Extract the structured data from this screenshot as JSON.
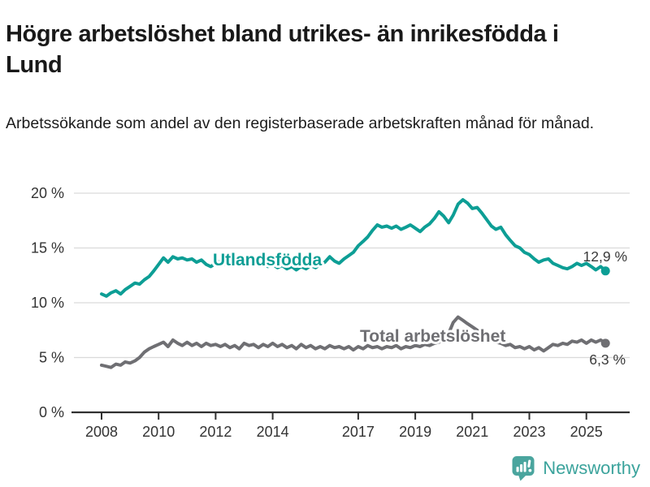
{
  "header": {
    "title": "Högre arbetslöshet bland utrikes- än inrikesfödda i Lund",
    "subtitle": "Arbetssökande som andel av den registerbaserade arbetskraften månad för månad."
  },
  "colors": {
    "foreign_born_line": "#0d9e95",
    "total_line": "#6f6f73",
    "grid": "#dadada",
    "axis": "#303030",
    "axis_text": "#333333",
    "title_text": "#191919",
    "brand_teal": "#4aa59e"
  },
  "footer": {
    "brand": "Newsworthy",
    "brand_icon": "speech-bubble-bar-chart-icon"
  },
  "chart_data": {
    "type": "line",
    "title": "Högre arbetslöshet bland utrikes- än inrikesfödda i Lund",
    "subtitle": "Arbetssökande som andel av den registerbaserade arbetskraften månad för månad.",
    "xlabel": "",
    "ylabel": "",
    "unit": "%",
    "ylim": [
      0,
      20
    ],
    "x_range": [
      2008,
      2025.67
    ],
    "grid": true,
    "legend_position": "inline-labels",
    "yticks": [
      {
        "value": 0,
        "label": "0 %"
      },
      {
        "value": 5,
        "label": "5 %"
      },
      {
        "value": 10,
        "label": "10 %"
      },
      {
        "value": 15,
        "label": "15 %"
      },
      {
        "value": 20,
        "label": "20 %"
      }
    ],
    "xticks": [
      {
        "value": 2008,
        "label": "2008"
      },
      {
        "value": 2010,
        "label": "2010"
      },
      {
        "value": 2012,
        "label": "2012"
      },
      {
        "value": 2014,
        "label": "2014"
      },
      {
        "value": 2017,
        "label": "2017"
      },
      {
        "value": 2019,
        "label": "2019"
      },
      {
        "value": 2021,
        "label": "2021"
      },
      {
        "value": 2023,
        "label": "2023"
      },
      {
        "value": 2025,
        "label": "2025"
      }
    ],
    "series": [
      {
        "name": "Utlandsfödda",
        "color": "#0d9e95",
        "end_label": "12,9 %",
        "end_value": 12.9,
        "points": [
          [
            2008.0,
            10.8
          ],
          [
            2008.17,
            10.6
          ],
          [
            2008.33,
            10.9
          ],
          [
            2008.5,
            11.1
          ],
          [
            2008.67,
            10.8
          ],
          [
            2008.83,
            11.2
          ],
          [
            2009.0,
            11.5
          ],
          [
            2009.17,
            11.8
          ],
          [
            2009.33,
            11.7
          ],
          [
            2009.5,
            12.1
          ],
          [
            2009.67,
            12.4
          ],
          [
            2009.83,
            12.9
          ],
          [
            2010.0,
            13.5
          ],
          [
            2010.17,
            14.1
          ],
          [
            2010.33,
            13.7
          ],
          [
            2010.5,
            14.2
          ],
          [
            2010.67,
            14.0
          ],
          [
            2010.83,
            14.1
          ],
          [
            2011.0,
            13.9
          ],
          [
            2011.17,
            14.0
          ],
          [
            2011.33,
            13.7
          ],
          [
            2011.5,
            13.9
          ],
          [
            2011.67,
            13.5
          ],
          [
            2011.83,
            13.3
          ],
          [
            2012.0,
            13.6
          ],
          [
            2012.17,
            13.8
          ],
          [
            2012.33,
            13.5
          ],
          [
            2012.5,
            13.7
          ],
          [
            2012.67,
            13.4
          ],
          [
            2012.83,
            13.7
          ],
          [
            2013.0,
            13.8
          ],
          [
            2013.17,
            13.5
          ],
          [
            2013.33,
            13.7
          ],
          [
            2013.5,
            13.4
          ],
          [
            2013.67,
            13.6
          ],
          [
            2013.83,
            13.3
          ],
          [
            2014.0,
            13.5
          ],
          [
            2014.17,
            13.2
          ],
          [
            2014.33,
            13.4
          ],
          [
            2014.5,
            13.1
          ],
          [
            2014.67,
            13.3
          ],
          [
            2014.83,
            13.0
          ],
          [
            2015.0,
            13.3
          ],
          [
            2015.17,
            13.1
          ],
          [
            2015.33,
            13.4
          ],
          [
            2015.5,
            13.2
          ],
          [
            2015.67,
            13.5
          ],
          [
            2015.83,
            13.7
          ],
          [
            2016.0,
            14.2
          ],
          [
            2016.17,
            13.8
          ],
          [
            2016.33,
            13.6
          ],
          [
            2016.5,
            14.0
          ],
          [
            2016.67,
            14.3
          ],
          [
            2016.83,
            14.6
          ],
          [
            2017.0,
            15.2
          ],
          [
            2017.17,
            15.6
          ],
          [
            2017.33,
            16.0
          ],
          [
            2017.5,
            16.6
          ],
          [
            2017.67,
            17.1
          ],
          [
            2017.83,
            16.9
          ],
          [
            2018.0,
            17.0
          ],
          [
            2018.17,
            16.8
          ],
          [
            2018.33,
            17.0
          ],
          [
            2018.5,
            16.7
          ],
          [
            2018.67,
            16.9
          ],
          [
            2018.83,
            17.1
          ],
          [
            2019.0,
            16.8
          ],
          [
            2019.17,
            16.5
          ],
          [
            2019.33,
            16.9
          ],
          [
            2019.5,
            17.2
          ],
          [
            2019.67,
            17.7
          ],
          [
            2019.83,
            18.3
          ],
          [
            2020.0,
            17.9
          ],
          [
            2020.17,
            17.3
          ],
          [
            2020.33,
            18.0
          ],
          [
            2020.5,
            19.0
          ],
          [
            2020.67,
            19.4
          ],
          [
            2020.83,
            19.1
          ],
          [
            2021.0,
            18.6
          ],
          [
            2021.17,
            18.7
          ],
          [
            2021.33,
            18.2
          ],
          [
            2021.5,
            17.6
          ],
          [
            2021.67,
            17.0
          ],
          [
            2021.83,
            16.7
          ],
          [
            2022.0,
            16.9
          ],
          [
            2022.17,
            16.2
          ],
          [
            2022.33,
            15.7
          ],
          [
            2022.5,
            15.2
          ],
          [
            2022.67,
            15.0
          ],
          [
            2022.83,
            14.6
          ],
          [
            2023.0,
            14.4
          ],
          [
            2023.17,
            14.0
          ],
          [
            2023.33,
            13.7
          ],
          [
            2023.5,
            13.9
          ],
          [
            2023.67,
            14.0
          ],
          [
            2023.83,
            13.6
          ],
          [
            2024.0,
            13.4
          ],
          [
            2024.17,
            13.2
          ],
          [
            2024.33,
            13.1
          ],
          [
            2024.5,
            13.3
          ],
          [
            2024.67,
            13.6
          ],
          [
            2024.83,
            13.4
          ],
          [
            2025.0,
            13.6
          ],
          [
            2025.17,
            13.3
          ],
          [
            2025.33,
            13.0
          ],
          [
            2025.5,
            13.3
          ],
          [
            2025.67,
            12.9
          ]
        ]
      },
      {
        "name": "Total arbetslöshet",
        "color": "#6f6f73",
        "end_label": "6,3 %",
        "end_value": 6.3,
        "points": [
          [
            2008.0,
            4.3
          ],
          [
            2008.17,
            4.2
          ],
          [
            2008.33,
            4.1
          ],
          [
            2008.5,
            4.4
          ],
          [
            2008.67,
            4.3
          ],
          [
            2008.83,
            4.6
          ],
          [
            2009.0,
            4.5
          ],
          [
            2009.17,
            4.7
          ],
          [
            2009.33,
            5.0
          ],
          [
            2009.5,
            5.5
          ],
          [
            2009.67,
            5.8
          ],
          [
            2009.83,
            6.0
          ],
          [
            2010.0,
            6.2
          ],
          [
            2010.17,
            6.4
          ],
          [
            2010.33,
            6.0
          ],
          [
            2010.5,
            6.6
          ],
          [
            2010.67,
            6.3
          ],
          [
            2010.83,
            6.1
          ],
          [
            2011.0,
            6.4
          ],
          [
            2011.17,
            6.1
          ],
          [
            2011.33,
            6.3
          ],
          [
            2011.5,
            6.0
          ],
          [
            2011.67,
            6.3
          ],
          [
            2011.83,
            6.1
          ],
          [
            2012.0,
            6.2
          ],
          [
            2012.17,
            6.0
          ],
          [
            2012.33,
            6.2
          ],
          [
            2012.5,
            5.9
          ],
          [
            2012.67,
            6.1
          ],
          [
            2012.83,
            5.8
          ],
          [
            2013.0,
            6.3
          ],
          [
            2013.17,
            6.1
          ],
          [
            2013.33,
            6.2
          ],
          [
            2013.5,
            5.9
          ],
          [
            2013.67,
            6.2
          ],
          [
            2013.83,
            6.0
          ],
          [
            2014.0,
            6.3
          ],
          [
            2014.17,
            6.0
          ],
          [
            2014.33,
            6.2
          ],
          [
            2014.5,
            5.9
          ],
          [
            2014.67,
            6.1
          ],
          [
            2014.83,
            5.8
          ],
          [
            2015.0,
            6.2
          ],
          [
            2015.17,
            5.9
          ],
          [
            2015.33,
            6.1
          ],
          [
            2015.5,
            5.8
          ],
          [
            2015.67,
            6.0
          ],
          [
            2015.83,
            5.8
          ],
          [
            2016.0,
            6.1
          ],
          [
            2016.17,
            5.9
          ],
          [
            2016.33,
            6.0
          ],
          [
            2016.5,
            5.8
          ],
          [
            2016.67,
            6.0
          ],
          [
            2016.83,
            5.7
          ],
          [
            2017.0,
            6.0
          ],
          [
            2017.17,
            5.8
          ],
          [
            2017.33,
            6.1
          ],
          [
            2017.5,
            5.9
          ],
          [
            2017.67,
            6.0
          ],
          [
            2017.83,
            5.8
          ],
          [
            2018.0,
            6.0
          ],
          [
            2018.17,
            5.9
          ],
          [
            2018.33,
            6.1
          ],
          [
            2018.5,
            5.8
          ],
          [
            2018.67,
            6.0
          ],
          [
            2018.83,
            5.9
          ],
          [
            2019.0,
            6.1
          ],
          [
            2019.17,
            6.0
          ],
          [
            2019.33,
            6.2
          ],
          [
            2019.5,
            6.1
          ],
          [
            2019.67,
            6.3
          ],
          [
            2019.83,
            6.4
          ],
          [
            2020.0,
            6.6
          ],
          [
            2020.17,
            7.2
          ],
          [
            2020.33,
            8.2
          ],
          [
            2020.5,
            8.7
          ],
          [
            2020.67,
            8.4
          ],
          [
            2020.83,
            8.1
          ],
          [
            2021.0,
            7.8
          ],
          [
            2021.17,
            7.5
          ],
          [
            2021.33,
            7.2
          ],
          [
            2021.5,
            6.9
          ],
          [
            2021.67,
            6.6
          ],
          [
            2021.83,
            6.4
          ],
          [
            2022.0,
            6.3
          ],
          [
            2022.17,
            6.1
          ],
          [
            2022.33,
            6.2
          ],
          [
            2022.5,
            5.9
          ],
          [
            2022.67,
            6.0
          ],
          [
            2022.83,
            5.8
          ],
          [
            2023.0,
            6.0
          ],
          [
            2023.17,
            5.7
          ],
          [
            2023.33,
            5.9
          ],
          [
            2023.5,
            5.6
          ],
          [
            2023.67,
            5.9
          ],
          [
            2023.83,
            6.2
          ],
          [
            2024.0,
            6.1
          ],
          [
            2024.17,
            6.3
          ],
          [
            2024.33,
            6.2
          ],
          [
            2024.5,
            6.5
          ],
          [
            2024.67,
            6.4
          ],
          [
            2024.83,
            6.6
          ],
          [
            2025.0,
            6.3
          ],
          [
            2025.17,
            6.6
          ],
          [
            2025.33,
            6.4
          ],
          [
            2025.5,
            6.6
          ],
          [
            2025.67,
            6.3
          ]
        ]
      }
    ]
  }
}
